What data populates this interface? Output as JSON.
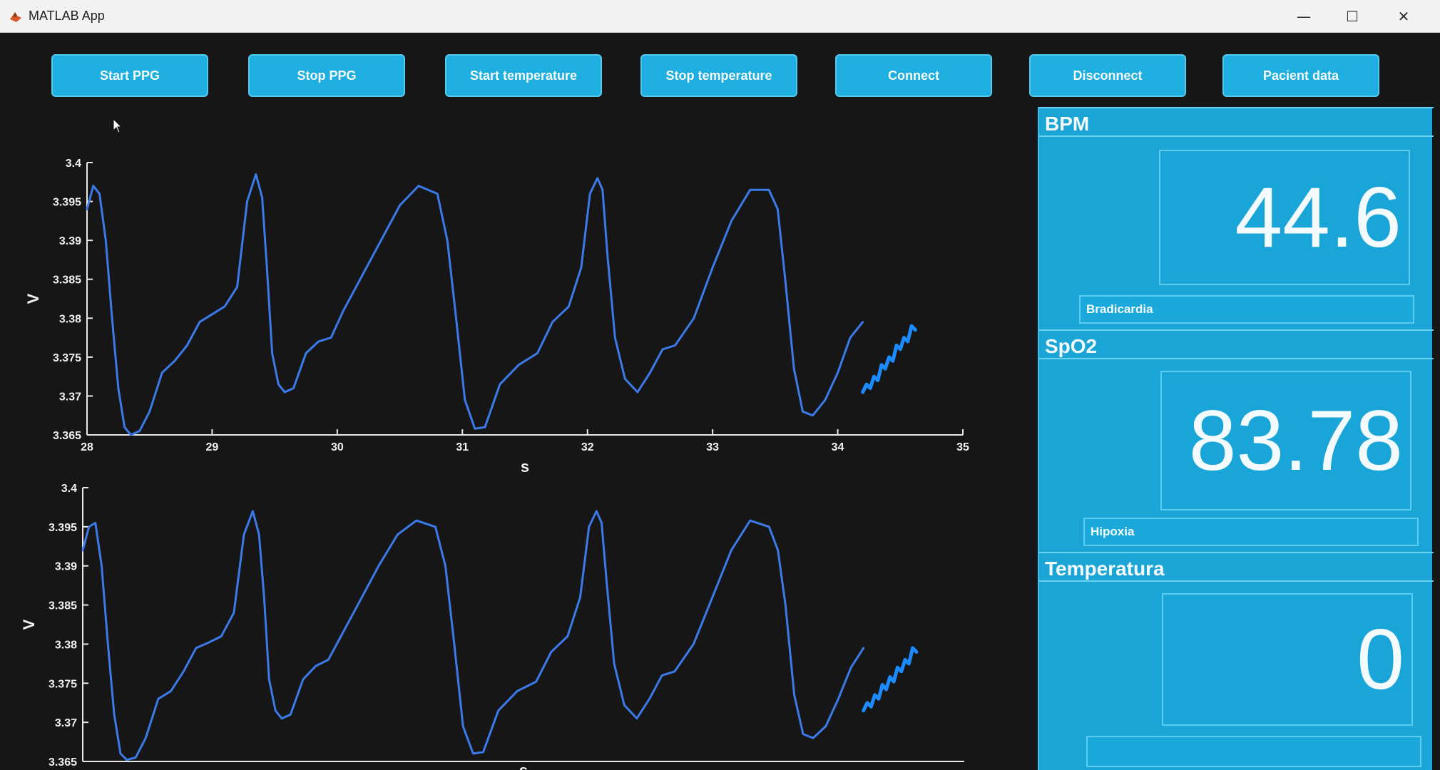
{
  "window": {
    "title": "MATLAB App",
    "min": "—",
    "max": "☐",
    "close": "✕"
  },
  "toolbar": {
    "buttons": [
      "Start PPG",
      "Stop PPG",
      "Start temperature",
      "Stop temperature",
      "Connect",
      "Disconnect",
      "Pacient data"
    ]
  },
  "colors": {
    "accent": "#1eaee0",
    "panel": "#1ba5d7",
    "background": "#161616",
    "trace": "#3b7ae8",
    "trace_live": "#1b8cff"
  },
  "chart_data": [
    {
      "type": "line",
      "xlabel": "s",
      "ylabel": "V",
      "xlim": [
        28,
        35
      ],
      "ylim": [
        3.365,
        3.4
      ],
      "xticks": [
        "28",
        "29",
        "30",
        "31",
        "32",
        "33",
        "34",
        "35"
      ],
      "yticks": [
        "3.365",
        "3.37",
        "3.375",
        "3.38",
        "3.385",
        "3.39",
        "3.395",
        "3.4"
      ],
      "series": [
        {
          "x": [
            28.0,
            28.05,
            28.1,
            28.15,
            28.2,
            28.25,
            28.3,
            28.35,
            28.42,
            28.5,
            28.6,
            28.7,
            28.8,
            28.9,
            29.0,
            29.1,
            29.2,
            29.28,
            29.35,
            29.4,
            29.44,
            29.48,
            29.53,
            29.58,
            29.65,
            29.75,
            29.85,
            29.95,
            30.05,
            30.2,
            30.35,
            30.5,
            30.65,
            30.8,
            30.88,
            30.95,
            31.02,
            31.1,
            31.18,
            31.3,
            31.45,
            31.6,
            31.72,
            31.85,
            31.95,
            32.02,
            32.08,
            32.12,
            32.16,
            32.22,
            32.3,
            32.4,
            32.5,
            32.6,
            32.7,
            32.85,
            33.0,
            33.15,
            33.3,
            33.45,
            33.52,
            33.58,
            33.65,
            33.72,
            33.8,
            33.9,
            34.0,
            34.1,
            34.2
          ],
          "y": [
            3.394,
            3.397,
            3.396,
            3.39,
            3.38,
            3.371,
            3.366,
            3.365,
            3.3655,
            3.368,
            3.373,
            3.3745,
            3.3765,
            3.3795,
            3.3805,
            3.3815,
            3.384,
            3.395,
            3.3985,
            3.3955,
            3.386,
            3.3755,
            3.3715,
            3.3705,
            3.371,
            3.3755,
            3.377,
            3.3775,
            3.381,
            3.3855,
            3.39,
            3.3945,
            3.397,
            3.396,
            3.39,
            3.38,
            3.3695,
            3.3658,
            3.366,
            3.3715,
            3.374,
            3.3755,
            3.3795,
            3.3815,
            3.3865,
            3.396,
            3.398,
            3.3965,
            3.388,
            3.3775,
            3.3722,
            3.3705,
            3.373,
            3.376,
            3.3765,
            3.38,
            3.3865,
            3.3925,
            3.3965,
            3.3965,
            3.394,
            3.385,
            3.3735,
            3.368,
            3.3675,
            3.3695,
            3.373,
            3.3775,
            3.3795
          ]
        },
        {
          "x": [
            34.2,
            34.23,
            34.26,
            34.29,
            34.32,
            34.35,
            34.38,
            34.41,
            34.44,
            34.47,
            34.5,
            34.53,
            34.56,
            34.59,
            34.62
          ],
          "y": [
            3.3705,
            3.3715,
            3.371,
            3.3725,
            3.372,
            3.374,
            3.3735,
            3.375,
            3.3745,
            3.3765,
            3.376,
            3.3775,
            3.377,
            3.379,
            3.3785
          ]
        }
      ]
    },
    {
      "type": "line",
      "xlabel": "s",
      "ylabel": "V",
      "xlim": [
        28,
        35
      ],
      "ylim": [
        3.365,
        3.4
      ],
      "yticks": [
        "3.365",
        "3.37",
        "3.375",
        "3.38",
        "3.385",
        "3.39",
        "3.395",
        "3.4"
      ],
      "series": [
        {
          "x": [
            28.0,
            28.05,
            28.1,
            28.15,
            28.2,
            28.25,
            28.3,
            28.35,
            28.42,
            28.5,
            28.6,
            28.7,
            28.8,
            28.9,
            29.0,
            29.1,
            29.2,
            29.28,
            29.35,
            29.4,
            29.44,
            29.48,
            29.53,
            29.58,
            29.65,
            29.75,
            29.85,
            29.95,
            30.05,
            30.2,
            30.35,
            30.5,
            30.65,
            30.8,
            30.88,
            30.95,
            31.02,
            31.1,
            31.18,
            31.3,
            31.45,
            31.6,
            31.72,
            31.85,
            31.95,
            32.02,
            32.08,
            32.12,
            32.16,
            32.22,
            32.3,
            32.4,
            32.5,
            32.6,
            32.7,
            32.85,
            33.0,
            33.15,
            33.3,
            33.45,
            33.52,
            33.58,
            33.65,
            33.72,
            33.8,
            33.9,
            34.0,
            34.1,
            34.2
          ],
          "y": [
            3.392,
            3.395,
            3.3955,
            3.39,
            3.38,
            3.371,
            3.366,
            3.3652,
            3.3655,
            3.368,
            3.373,
            3.374,
            3.3765,
            3.3795,
            3.3802,
            3.381,
            3.384,
            3.394,
            3.397,
            3.394,
            3.386,
            3.3755,
            3.3715,
            3.3705,
            3.371,
            3.3755,
            3.3772,
            3.378,
            3.381,
            3.3855,
            3.39,
            3.394,
            3.3958,
            3.395,
            3.39,
            3.38,
            3.3695,
            3.366,
            3.3662,
            3.3715,
            3.374,
            3.3752,
            3.379,
            3.381,
            3.386,
            3.395,
            3.397,
            3.3955,
            3.388,
            3.3775,
            3.3722,
            3.3705,
            3.373,
            3.376,
            3.3765,
            3.38,
            3.386,
            3.392,
            3.3958,
            3.395,
            3.392,
            3.385,
            3.3735,
            3.3685,
            3.368,
            3.3695,
            3.373,
            3.377,
            3.3795
          ]
        },
        {
          "x": [
            34.2,
            34.23,
            34.26,
            34.29,
            34.32,
            34.35,
            34.38,
            34.41,
            34.44,
            34.47,
            34.5,
            34.53,
            34.56,
            34.59,
            34.62
          ],
          "y": [
            3.3715,
            3.3725,
            3.372,
            3.3735,
            3.373,
            3.3748,
            3.3742,
            3.3758,
            3.3752,
            3.377,
            3.3765,
            3.378,
            3.3775,
            3.3795,
            3.379
          ]
        }
      ]
    }
  ],
  "panels": {
    "bpm": {
      "title": "BPM",
      "value": "44.6",
      "status": "Bradicardia"
    },
    "spo2": {
      "title": "SpO2",
      "value": "83.78",
      "status": "Hipoxia"
    },
    "temp": {
      "title": "Temperatura",
      "value": "0",
      "status": ""
    }
  }
}
